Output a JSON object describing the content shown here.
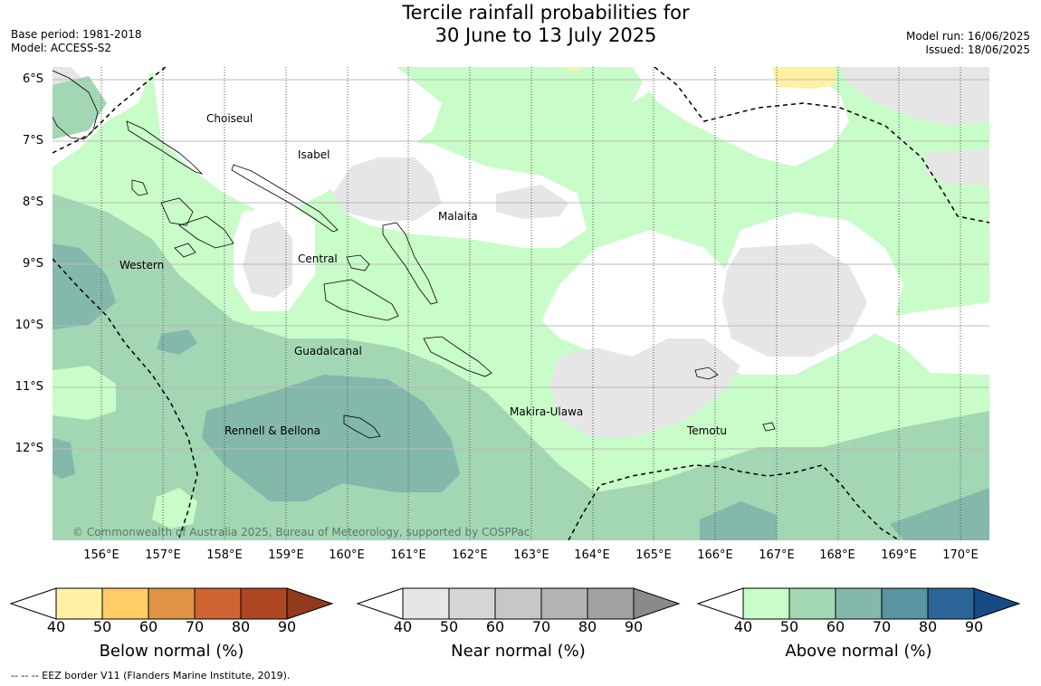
{
  "header": {
    "title_line1": "Tercile rainfall probabilities for",
    "title_line2": "30 June to 13 July 2025",
    "base_period": "Base period: 1981-2018",
    "model": "Model: ACCESS-S2",
    "model_run": "Model run: 16/06/2025",
    "issued": "Issued: 18/06/2025"
  },
  "map": {
    "lat_labels": [
      "6°S",
      "7°S",
      "8°S",
      "9°S",
      "10°S",
      "11°S",
      "12°S"
    ],
    "lon_labels": [
      "156°E",
      "157°E",
      "158°E",
      "159°E",
      "160°E",
      "161°E",
      "162°E",
      "163°E",
      "164°E",
      "165°E",
      "166°E",
      "167°E",
      "168°E",
      "169°E",
      "170°E"
    ],
    "regions": {
      "choiseul": "Choiseul",
      "isabel": "Isabel",
      "malaita": "Malaita",
      "western": "Western",
      "central": "Central",
      "guadalcanal": "Guadalcanal",
      "makira": "Makira-Ulawa",
      "rennell": "Rennell & Bellona",
      "temotu": "Temotu"
    },
    "copyright": "© Commonwealth of Australia 2025, Bureau of Meteorology, supported by COSPPac"
  },
  "colorbars": [
    {
      "label": "Below normal (%)",
      "ticks": [
        "40",
        "50",
        "60",
        "70",
        "80",
        "90"
      ],
      "colors": [
        "#fff0a3",
        "#ffcc66",
        "#e09345",
        "#cf6432",
        "#ad4622",
        "#923a1c"
      ]
    },
    {
      "label": "Near normal (%)",
      "ticks": [
        "40",
        "50",
        "60",
        "70",
        "80",
        "90"
      ],
      "colors": [
        "#e6e6e6",
        "#d6d6d6",
        "#c7c7c7",
        "#b3b3b3",
        "#a1a1a1",
        "#8a8a8a"
      ]
    },
    {
      "label": "Above normal (%)",
      "ticks": [
        "40",
        "50",
        "60",
        "70",
        "80",
        "90"
      ],
      "colors": [
        "#c8fcc8",
        "#a3d6b3",
        "#83b8ab",
        "#5a94a0",
        "#2e6598",
        "#174b84"
      ]
    }
  ],
  "footnote": "--  --  -- EEZ border V11 (Flanders Marine Institute, 2019)."
}
